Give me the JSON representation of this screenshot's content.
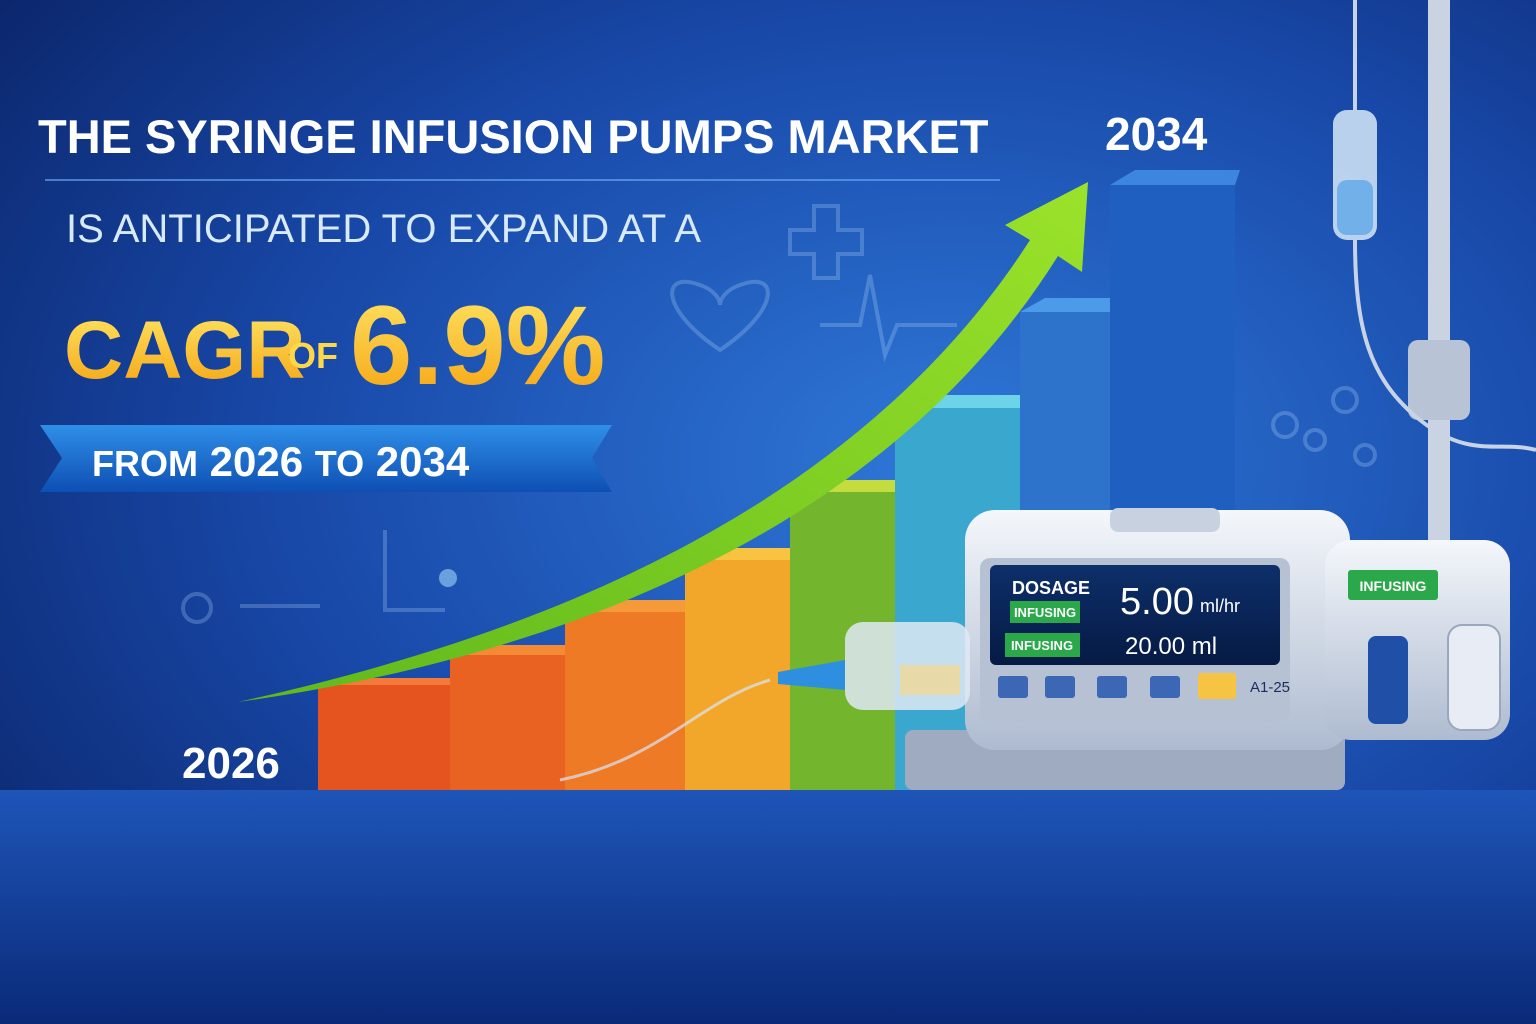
{
  "headline": {
    "line1": "THE SYRINGE INFUSION PUMPS MARKET",
    "line2": "IS ANTICIPATED TO EXPAND AT A",
    "cagr_label": "CAGR",
    "of": "OF",
    "cagr_value": "6.9%",
    "period": {
      "from": "FROM",
      "start": "2026",
      "to": "TO",
      "end": "2034"
    }
  },
  "chart": {
    "start_label": "2026",
    "end_label": "2034"
  },
  "pump": {
    "screen": {
      "dosage": "DOSAGE",
      "status_1": "INFUSING",
      "rate": "5.00",
      "rate_unit": "ml/hr",
      "status_2": "INFUSING",
      "volume": "20.00 ml",
      "code": "A1-25"
    },
    "indicator": "INFUSING"
  }
}
